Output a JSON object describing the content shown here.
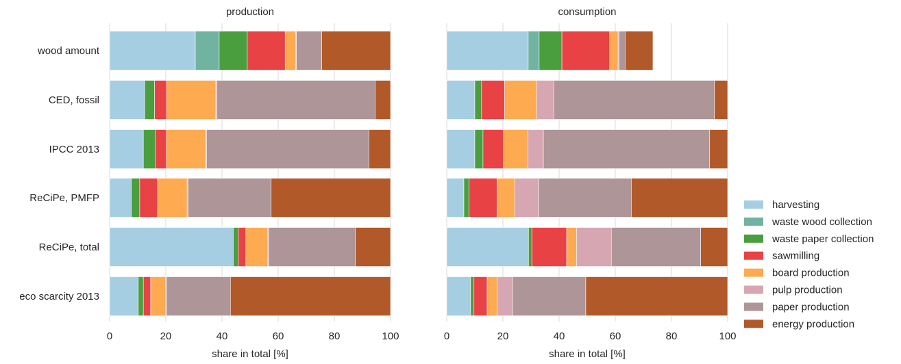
{
  "chart_data": {
    "type": "bar",
    "orientation": "horizontal",
    "stacked": true,
    "categories": [
      "wood amount",
      "CED, fossil",
      "IPCC 2013",
      "ReCiPe, PMFP",
      "ReCiPe, total",
      "eco scarcity 2013"
    ],
    "xlabel": "share in total [%]",
    "xlim": [
      0,
      100
    ],
    "xticks": [
      0,
      20,
      40,
      60,
      80,
      100
    ],
    "grid": true,
    "legend_position": "right",
    "series": [
      {
        "name": "harvesting",
        "color": "#a6cee3"
      },
      {
        "name": "waste wood collection",
        "color": "#6fb3a0"
      },
      {
        "name": "waste paper collection",
        "color": "#4a9e3d"
      },
      {
        "name": "sawmilling",
        "color": "#e94245"
      },
      {
        "name": "board production",
        "color": "#fdaa50"
      },
      {
        "name": "pulp production",
        "color": "#d7a6b3"
      },
      {
        "name": "paper production",
        "color": "#ad9598"
      },
      {
        "name": "energy production",
        "color": "#b15928"
      }
    ],
    "panels": [
      {
        "title": "production",
        "values": [
          [
            30.5,
            8.5,
            10,
            13.5,
            3.7,
            0.3,
            9,
            24.5
          ],
          [
            12.5,
            0,
            3.5,
            4.3,
            17.5,
            0.4,
            56.3,
            5.5
          ],
          [
            12,
            0,
            4.3,
            3.9,
            13.8,
            0.5,
            57.8,
            7.7
          ],
          [
            7.7,
            0,
            3,
            6.4,
            10.5,
            0.3,
            29.6,
            42.5
          ],
          [
            44,
            0,
            1.8,
            2.7,
            7.8,
            0.3,
            30.9,
            12.5
          ],
          [
            10.2,
            0,
            1.8,
            2.6,
            5.4,
            0.2,
            22.8,
            57
          ]
        ]
      },
      {
        "title": "consumption",
        "values": [
          [
            29,
            3.9,
            8.1,
            17,
            3,
            0.3,
            2.2,
            9.9
          ],
          [
            10,
            0,
            2.4,
            8.2,
            11.4,
            6.1,
            57.2,
            4.7
          ],
          [
            10,
            0,
            2.9,
            7.3,
            8.7,
            5.5,
            59.2,
            6.4
          ],
          [
            6.1,
            0,
            1.8,
            10,
            6.3,
            8.5,
            33,
            34.3
          ],
          [
            29.1,
            0,
            1.2,
            12.4,
            3.5,
            12.4,
            31.8,
            9.6
          ],
          [
            8.5,
            0,
            1.2,
            4.7,
            3.5,
            5.6,
            26,
            50.5
          ]
        ]
      }
    ]
  }
}
